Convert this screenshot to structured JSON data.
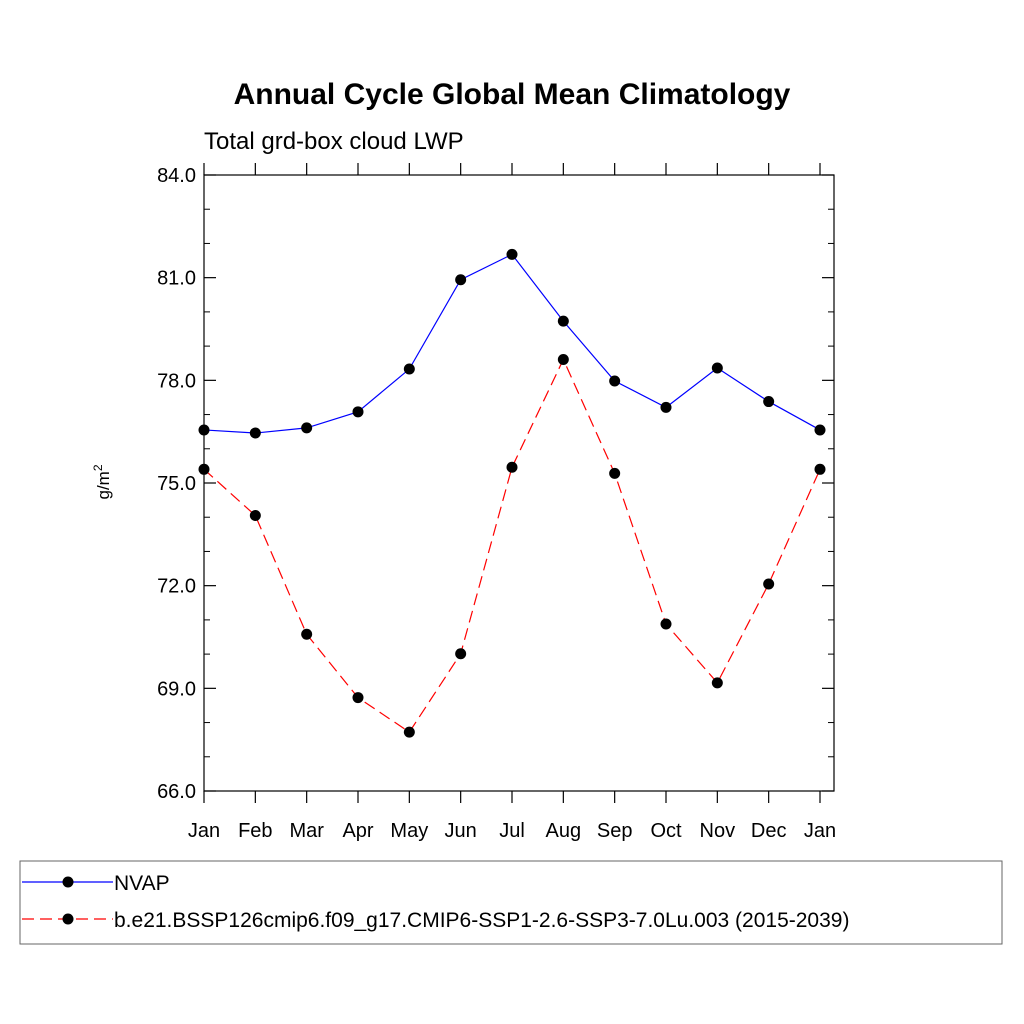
{
  "chart_data": {
    "type": "line",
    "title": "Annual Cycle Global Mean Climatology",
    "subtitle": "Total grd-box cloud LWP",
    "ylabel": "g/m",
    "ylabel_sup": "2",
    "categories": [
      "Jan",
      "Feb",
      "Mar",
      "Apr",
      "May",
      "Jun",
      "Jul",
      "Aug",
      "Sep",
      "Oct",
      "Nov",
      "Dec",
      "Jan"
    ],
    "ylim": [
      66.0,
      84.0
    ],
    "yticks": [
      "66.0",
      "69.0",
      "72.0",
      "75.0",
      "78.0",
      "81.0",
      "84.0"
    ],
    "series": [
      {
        "name": "NVAP",
        "color": "#0000ff",
        "dash": "solid",
        "values": [
          76.55,
          76.46,
          76.61,
          77.08,
          78.33,
          80.94,
          81.68,
          79.73,
          77.98,
          77.21,
          78.36,
          77.38,
          76.55
        ]
      },
      {
        "name": "b.e21.BSSP126cmip6.f09_g17.CMIP6-SSP1-2.6-SSP3-7.0Lu.003 (2015-2039)",
        "color": "#ff0000",
        "dash": "dashed",
        "values": [
          75.4,
          74.05,
          70.58,
          68.73,
          67.72,
          70.01,
          75.46,
          78.61,
          75.28,
          70.88,
          69.16,
          72.05,
          75.4
        ]
      }
    ],
    "grid": false,
    "legend_position": "bottom"
  }
}
